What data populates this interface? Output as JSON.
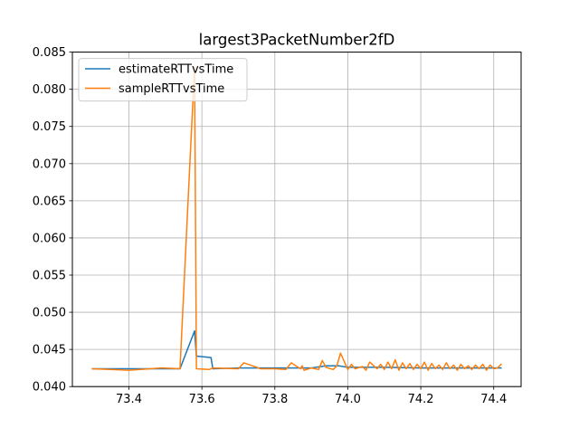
{
  "chart_data": {
    "type": "line",
    "title": "largest3PacketNumber2fD",
    "xlabel": "",
    "ylabel": "",
    "xlim": [
      73.245,
      74.475
    ],
    "ylim": [
      0.04,
      0.085
    ],
    "xticks": [
      73.4,
      73.6,
      73.8,
      74.0,
      74.2,
      74.4
    ],
    "xtick_labels": [
      "73.4",
      "73.6",
      "73.8",
      "74.0",
      "74.2",
      "74.4"
    ],
    "yticks": [
      0.04,
      0.045,
      0.05,
      0.055,
      0.06,
      0.065,
      0.07,
      0.075,
      0.08,
      0.085
    ],
    "ytick_labels": [
      "0.040",
      "0.045",
      "0.050",
      "0.055",
      "0.060",
      "0.065",
      "0.070",
      "0.075",
      "0.080",
      "0.085"
    ],
    "grid": true,
    "legend_position": "top-left",
    "series": [
      {
        "name": "estimateRTTvsTime",
        "color": "#1f77b4",
        "x": [
          73.3,
          73.4,
          73.49,
          73.54,
          73.58,
          73.585,
          73.625,
          73.63,
          73.7,
          73.8,
          73.9,
          73.94,
          73.975,
          74.0,
          74.1,
          74.2,
          74.3,
          74.42
        ],
        "y": [
          0.0424,
          0.0424,
          0.0424,
          0.0424,
          0.0475,
          0.0441,
          0.0439,
          0.0424,
          0.0425,
          0.0425,
          0.0425,
          0.0428,
          0.0428,
          0.0426,
          0.0426,
          0.0425,
          0.0425,
          0.0425
        ]
      },
      {
        "name": "sampleRTTvsTime",
        "color": "#ff7f0e",
        "x": [
          73.3,
          73.4,
          73.49,
          73.54,
          73.57,
          73.58,
          73.585,
          73.62,
          73.63,
          73.7,
          73.715,
          73.75,
          73.76,
          73.8,
          73.83,
          73.845,
          73.87,
          73.875,
          73.88,
          73.9,
          73.92,
          73.93,
          73.94,
          73.96,
          73.97,
          73.98,
          74.0,
          74.01,
          74.02,
          74.04,
          74.05,
          74.06,
          74.08,
          74.09,
          74.1,
          74.11,
          74.12,
          74.13,
          74.14,
          74.15,
          74.16,
          74.17,
          74.18,
          74.19,
          74.2,
          74.21,
          74.22,
          74.23,
          74.24,
          74.25,
          74.26,
          74.27,
          74.28,
          74.29,
          74.3,
          74.31,
          74.32,
          74.33,
          74.34,
          74.35,
          74.36,
          74.37,
          74.38,
          74.39,
          74.4,
          74.41,
          74.42
        ],
        "y": [
          0.0424,
          0.0422,
          0.0425,
          0.0424,
          0.073,
          0.083,
          0.0424,
          0.0423,
          0.0425,
          0.0424,
          0.0432,
          0.0426,
          0.0424,
          0.0424,
          0.0423,
          0.0432,
          0.0424,
          0.0428,
          0.0422,
          0.0425,
          0.0423,
          0.0435,
          0.0426,
          0.0423,
          0.0428,
          0.0445,
          0.0423,
          0.043,
          0.0424,
          0.0427,
          0.0422,
          0.0433,
          0.0424,
          0.043,
          0.0423,
          0.0433,
          0.0424,
          0.0436,
          0.0422,
          0.0432,
          0.0424,
          0.0431,
          0.0423,
          0.043,
          0.0424,
          0.0433,
          0.0422,
          0.0431,
          0.0424,
          0.0429,
          0.0423,
          0.0432,
          0.0424,
          0.0429,
          0.0422,
          0.043,
          0.0424,
          0.0428,
          0.0423,
          0.0429,
          0.0424,
          0.043,
          0.0422,
          0.0429,
          0.0424,
          0.0425,
          0.043
        ]
      }
    ]
  }
}
